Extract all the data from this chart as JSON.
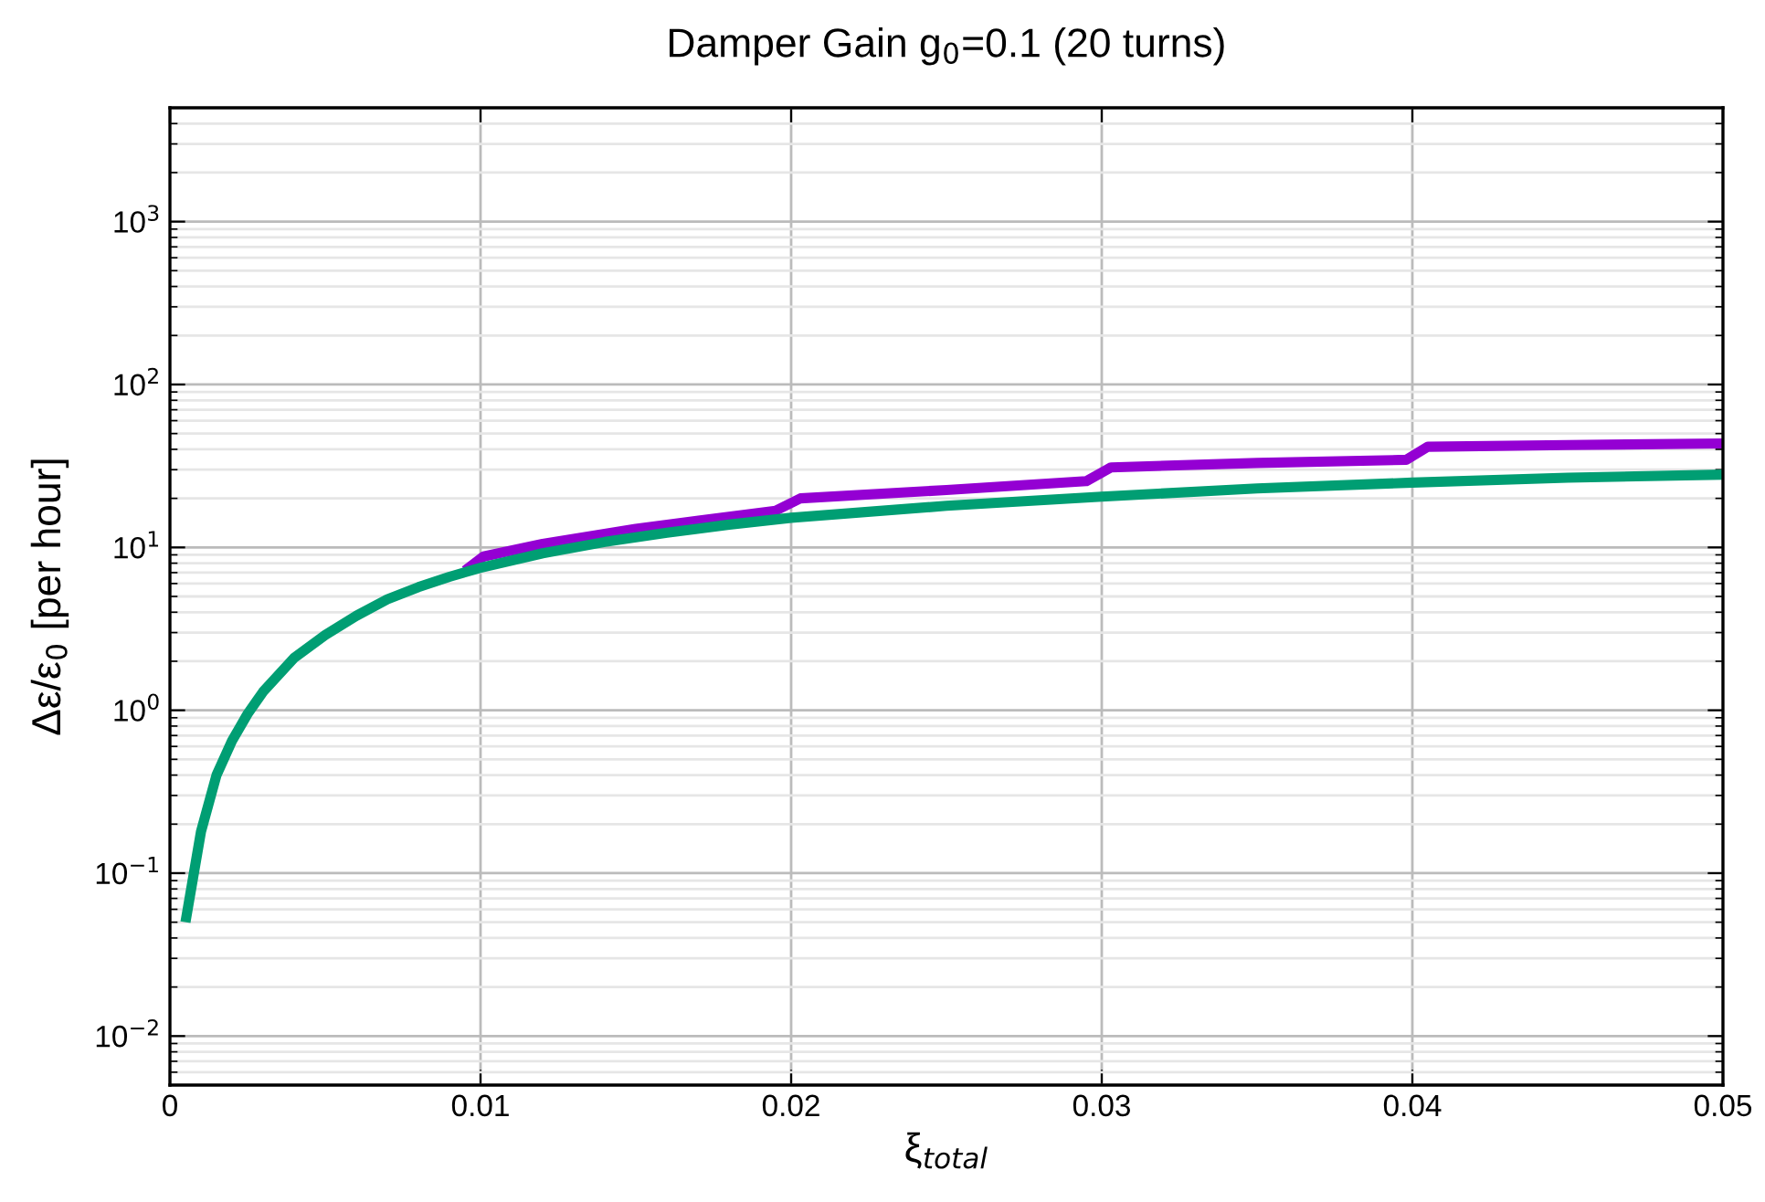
{
  "chart_data": {
    "type": "line",
    "title": "Damper Gain g$_{0}$=0.1 (20 turns)",
    "xlabel": "ξ$_{total}$",
    "ylabel": "Δε/ε$_{0}$ [per hour]",
    "log": "y",
    "grid": true,
    "legend": false,
    "marker": "none",
    "line_style": "solid",
    "xlim": [
      0,
      0.05
    ],
    "xticks": [
      0,
      0.01,
      0.02,
      0.03,
      0.04,
      0.05
    ],
    "ylim": [
      0.005,
      5000
    ],
    "yticks": [
      {
        "value": 0.01,
        "label": "10$^{−2}$"
      },
      {
        "value": 0.1,
        "label": "10$^{−1}$"
      },
      {
        "value": 1,
        "label": "10$^{0}$"
      },
      {
        "value": 10,
        "label": "10$^{1}$"
      },
      {
        "value": 100,
        "label": "10$^{2}$"
      },
      {
        "value": 1000,
        "label": "10$^{3}$"
      }
    ],
    "series": [
      {
        "color": "#9400d3",
        "x": [
          0.0095,
          0.0101,
          0.012,
          0.015,
          0.0195,
          0.0203,
          0.025,
          0.0295,
          0.0303,
          0.035,
          0.0398,
          0.0405,
          0.045,
          0.05
        ],
        "values": [
          7.2,
          8.8,
          10.5,
          13,
          16.8,
          20,
          22.5,
          25.5,
          31,
          33,
          34.5,
          41.5,
          42.5,
          43.5
        ]
      },
      {
        "color": "#009e73",
        "x": [
          0.0005,
          0.001,
          0.0015,
          0.002,
          0.0025,
          0.003,
          0.004,
          0.005,
          0.006,
          0.007,
          0.008,
          0.009,
          0.01,
          0.012,
          0.014,
          0.016,
          0.018,
          0.02,
          0.025,
          0.03,
          0.035,
          0.04,
          0.045,
          0.05
        ],
        "values": [
          0.05,
          0.18,
          0.4,
          0.65,
          0.95,
          1.3,
          2.1,
          2.9,
          3.8,
          4.8,
          5.7,
          6.6,
          7.5,
          9.2,
          10.8,
          12.3,
          13.8,
          15.2,
          18,
          20.5,
          23,
          25,
          26.8,
          28
        ]
      }
    ]
  }
}
